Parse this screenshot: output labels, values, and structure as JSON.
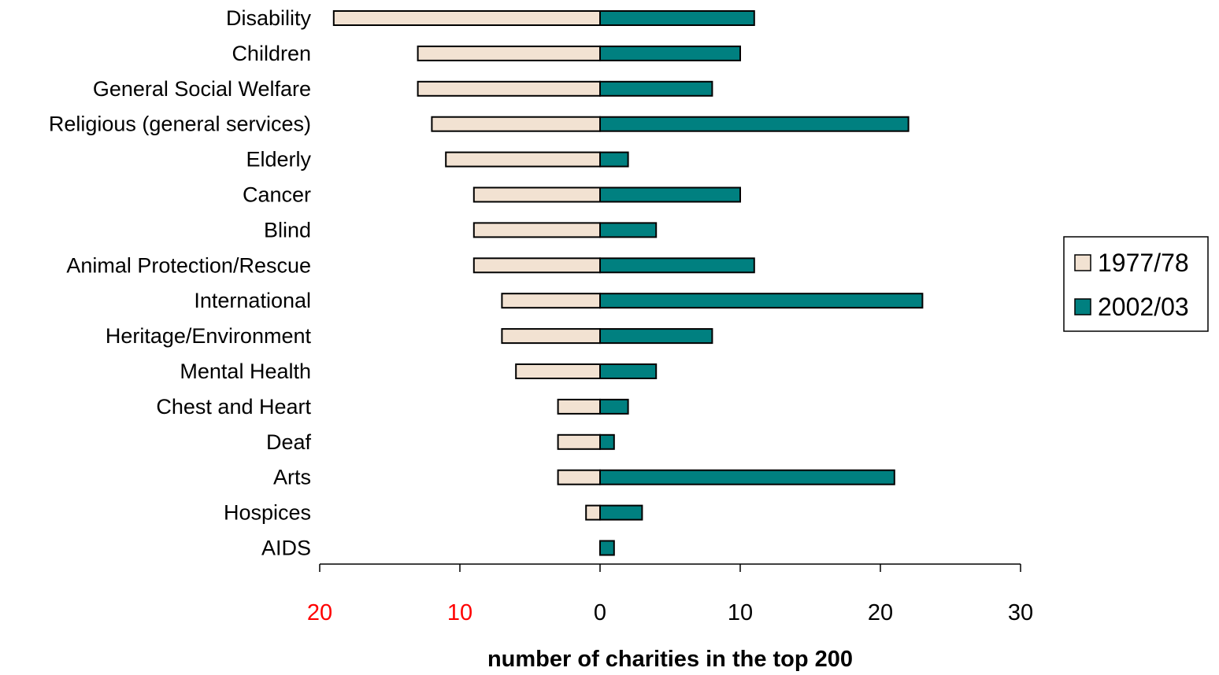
{
  "chart_data": {
    "type": "bar",
    "orientation": "horizontal-diverging",
    "categories": [
      "Disability",
      "Children",
      "General Social Welfare",
      "Religious (general services)",
      "Elderly",
      "Cancer",
      "Blind",
      "Animal Protection/Rescue",
      "International",
      "Heritage/Environment",
      "Mental Health",
      "Chest and Heart",
      "Deaf",
      "Arts",
      "Hospices",
      "AIDS"
    ],
    "series": [
      {
        "name": "1977/78",
        "direction": "left",
        "color": "#f2e2d2",
        "values": [
          19,
          13,
          13,
          12,
          11,
          9,
          9,
          9,
          7,
          7,
          6,
          3,
          3,
          3,
          1,
          0
        ]
      },
      {
        "name": "2002/03",
        "direction": "right",
        "color": "#008080",
        "values": [
          11,
          10,
          8,
          22,
          2,
          10,
          4,
          11,
          23,
          8,
          4,
          2,
          1,
          21,
          3,
          1
        ]
      }
    ],
    "xlabel": "number of charities in the top 200",
    "xlim": [
      -20,
      30
    ],
    "ticks": [
      {
        "value": -20,
        "label": "20",
        "color": "#ff0000"
      },
      {
        "value": -10,
        "label": "10",
        "color": "#ff0000"
      },
      {
        "value": 0,
        "label": "0",
        "color": "#000000"
      },
      {
        "value": 10,
        "label": "10",
        "color": "#000000"
      },
      {
        "value": 20,
        "label": "20",
        "color": "#000000"
      },
      {
        "value": 30,
        "label": "30",
        "color": "#000000"
      }
    ],
    "grid": false,
    "legend": {
      "position": "right",
      "entries": [
        "1977/78",
        "2002/03"
      ]
    }
  }
}
